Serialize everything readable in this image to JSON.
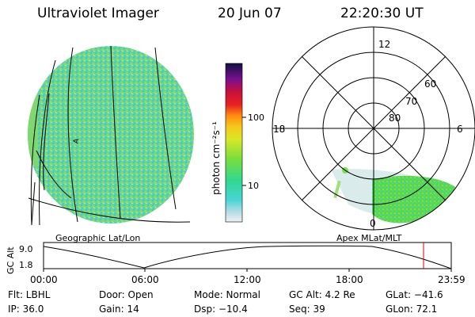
{
  "header": {
    "title": "Ultraviolet Imager",
    "date": "20 Jun 07",
    "time": "22:20:30 UT"
  },
  "colorbar": {
    "unit_label": "photon cm⁻²s⁻¹",
    "ticks": [
      "100",
      "10"
    ]
  },
  "geo_panel": {
    "label": "Geographic Lat/Lon",
    "marker": "A"
  },
  "polar_panel": {
    "label": "Apex MLat/MLT",
    "mlt_labels": {
      "top": "12",
      "left": "18",
      "right": "6",
      "bottom": "0"
    },
    "mlat_labels": [
      "60",
      "70",
      "80"
    ]
  },
  "altitude_plot": {
    "ylabel": "GC Alt",
    "yticks": [
      "9.0",
      "1.8"
    ],
    "xticks": [
      "00:00",
      "06:00",
      "12:00",
      "18:00",
      "23:59"
    ],
    "current_time_marker": "22:20",
    "marker_color": "#e00000"
  },
  "status": {
    "row1": {
      "flt": "Flt: LBHL",
      "door": "Door: Open",
      "mode": "Mode: Normal",
      "gc_alt": "GC Alt: 4.2 Re",
      "glat": "GLat: −41.6"
    },
    "row2": {
      "ip": "IP: 36.0",
      "gain": "Gain: 14",
      "dsp": "Dsp: −10.4",
      "seq": "Seq: 39",
      "glon": "GLon: 72.1"
    }
  },
  "colors": {
    "aurora_green": "#5ad84a",
    "aurora_cyan": "#4fd9b5",
    "aurora_pale": "#bfe6e6",
    "background": "#ffffff"
  }
}
